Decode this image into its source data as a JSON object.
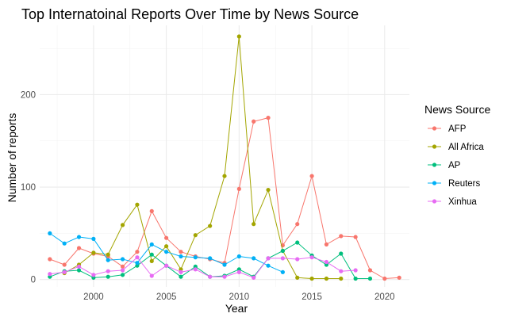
{
  "chart_data": {
    "type": "line",
    "title": "Top Internatoinal Reports Over Time by News Source",
    "xlabel": "Year",
    "ylabel": "Number of reports",
    "xlim": [
      1996.3,
      2021.7
    ],
    "ylim": [
      -8,
      275
    ],
    "x_ticks": [
      2000,
      2005,
      2010,
      2015,
      2020
    ],
    "y_ticks": [
      0,
      100,
      200
    ],
    "grid": true,
    "legend": {
      "title": "News Source",
      "position": "right"
    },
    "series": [
      {
        "name": "AFP",
        "color": "#F8766D",
        "x": [
          1997,
          1998,
          1999,
          2000,
          2001,
          2002,
          2003,
          2004,
          2005,
          2006,
          2007,
          2008,
          2009,
          2010,
          2011,
          2012,
          2013,
          2014,
          2015,
          2016,
          2017,
          2018,
          2019,
          2020,
          2021
        ],
        "y": [
          22,
          16,
          34,
          28,
          25,
          14,
          30,
          74,
          45,
          30,
          25,
          22,
          18,
          98,
          171,
          175,
          37,
          60,
          112,
          38,
          47,
          46,
          10,
          1,
          2
        ]
      },
      {
        "name": "All Africa",
        "color": "#A3A500",
        "x": [
          1998,
          1999,
          2000,
          2001,
          2002,
          2003,
          2004,
          2005,
          2006,
          2007,
          2008,
          2009,
          2010,
          2011,
          2012,
          2013,
          2014,
          2015,
          2016,
          2017
        ],
        "y": [
          7,
          16,
          29,
          27,
          59,
          81,
          20,
          36,
          11,
          48,
          58,
          112,
          263,
          60,
          97,
          31,
          2,
          1,
          1,
          1
        ]
      },
      {
        "name": "AP",
        "color": "#00BF7D",
        "x": [
          1997,
          1998,
          1999,
          2000,
          2001,
          2002,
          2003,
          2004,
          2005,
          2006,
          2007,
          2008,
          2009,
          2010,
          2011,
          2012,
          2013,
          2014,
          2015,
          2016,
          2017,
          2018,
          2019
        ],
        "y": [
          3,
          9,
          10,
          2,
          3,
          5,
          15,
          27,
          15,
          3,
          14,
          3,
          4,
          11,
          3,
          23,
          31,
          40,
          26,
          16,
          28,
          1,
          1
        ]
      },
      {
        "name": "Reuters",
        "color": "#00B0F6",
        "x": [
          1997,
          1998,
          1999,
          2000,
          2001,
          2002,
          2003,
          2004,
          2005,
          2006,
          2007,
          2008,
          2009,
          2010,
          2011,
          2012,
          2013
        ],
        "y": [
          50,
          39,
          46,
          44,
          21,
          22,
          18,
          38,
          30,
          25,
          24,
          23,
          16,
          25,
          23,
          15,
          8
        ]
      },
      {
        "name": "Xinhua",
        "color": "#E76BF3",
        "x": [
          1997,
          1998,
          1999,
          2000,
          2001,
          2002,
          2003,
          2004,
          2005,
          2006,
          2007,
          2008,
          2009,
          2010,
          2011,
          2012,
          2013,
          2014,
          2015,
          2016,
          2017,
          2018
        ],
        "y": [
          6,
          8,
          14,
          5,
          9,
          10,
          24,
          4,
          15,
          8,
          11,
          3,
          3,
          8,
          2,
          23,
          23,
          22,
          24,
          19,
          9,
          10
        ]
      }
    ]
  }
}
